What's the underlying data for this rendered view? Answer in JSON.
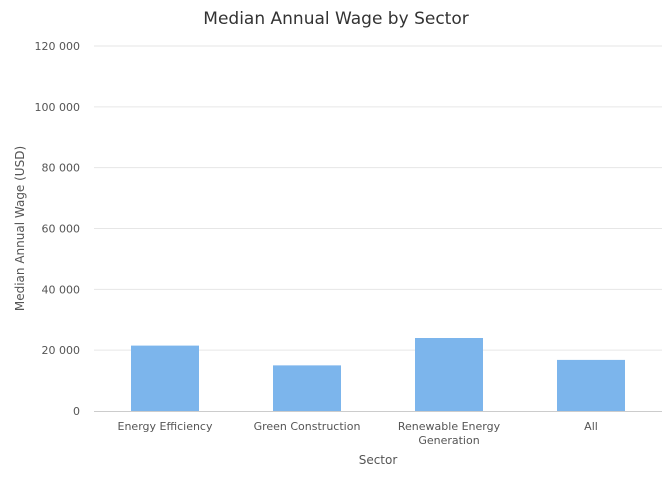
{
  "chart_data": {
    "type": "bar",
    "title": "Median Annual Wage by Sector",
    "xlabel": "Sector",
    "ylabel": "Median Annual Wage (USD)",
    "categories": [
      [
        "Energy Efficiency"
      ],
      [
        "Green Construction"
      ],
      [
        "Renewable Energy",
        "Generation"
      ],
      [
        "All"
      ]
    ],
    "values": [
      21500,
      15000,
      24000,
      16800
    ],
    "ylim": [
      0,
      120000
    ],
    "yticks": [
      0,
      20000,
      40000,
      60000,
      80000,
      100000,
      120000
    ],
    "ytick_labels": [
      "0",
      "20 000",
      "40 000",
      "60 000",
      "80 000",
      "100 000",
      "120 000"
    ],
    "grid": true,
    "legend": "none",
    "bar_color": "#7cb5ec"
  }
}
